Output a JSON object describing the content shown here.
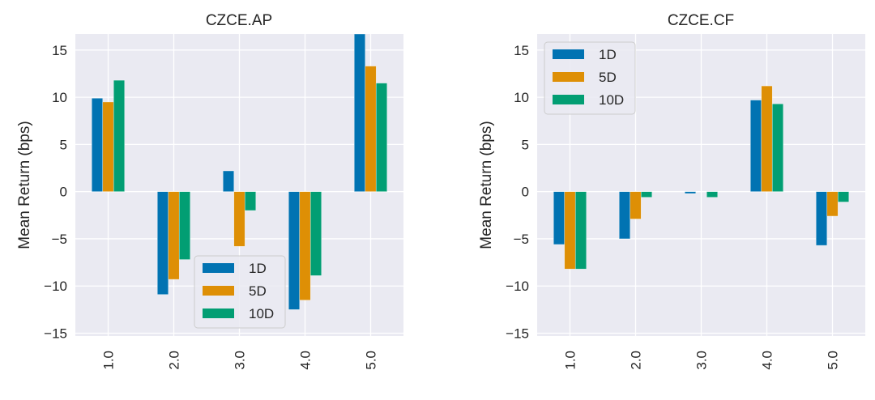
{
  "chart_data": [
    {
      "type": "bar",
      "title": "CZCE.AP",
      "xlabel": "",
      "ylabel": "Mean Return (bps)",
      "categories": [
        "1.0",
        "2.0",
        "3.0",
        "4.0",
        "5.0"
      ],
      "series": [
        {
          "name": "1D",
          "color": "#0173b2",
          "values": [
            9.9,
            -10.9,
            2.2,
            -12.5,
            16.8
          ]
        },
        {
          "name": "5D",
          "color": "#de8f05",
          "values": [
            9.5,
            -9.3,
            -5.8,
            -11.5,
            13.3
          ]
        },
        {
          "name": "10D",
          "color": "#029e73",
          "values": [
            11.8,
            -7.2,
            -2.0,
            -8.9,
            11.5
          ]
        }
      ],
      "ylim": [
        -15.3,
        16.7
      ],
      "yticks": [
        -15,
        -10,
        -5,
        0,
        5,
        10,
        15
      ],
      "ytick_labels": [
        "−15",
        "−10",
        "−5",
        "0",
        "5",
        "10",
        "15"
      ],
      "grid": true,
      "legend": {
        "position": "lower-center",
        "entries": [
          "1D",
          "5D",
          "10D"
        ]
      }
    },
    {
      "type": "bar",
      "title": "CZCE.CF",
      "xlabel": "",
      "ylabel": "Mean Return (bps)",
      "categories": [
        "1.0",
        "2.0",
        "3.0",
        "4.0",
        "5.0"
      ],
      "series": [
        {
          "name": "1D",
          "color": "#0173b2",
          "values": [
            -5.6,
            -5.0,
            -0.2,
            9.7,
            -5.7
          ]
        },
        {
          "name": "5D",
          "color": "#de8f05",
          "values": [
            -8.2,
            -2.9,
            0.0,
            11.2,
            -2.6
          ]
        },
        {
          "name": "10D",
          "color": "#029e73",
          "values": [
            -8.2,
            -0.6,
            -0.6,
            9.3,
            -1.1
          ]
        }
      ],
      "ylim": [
        -15.3,
        16.7
      ],
      "yticks": [
        -15,
        -10,
        -5,
        0,
        5,
        10,
        15
      ],
      "ytick_labels": [
        "−15",
        "−10",
        "−5",
        "0",
        "5",
        "10",
        "15"
      ],
      "grid": true,
      "legend": {
        "position": "upper-left",
        "entries": [
          "1D",
          "5D",
          "10D"
        ]
      }
    }
  ],
  "style": {
    "plot_background": "#eaeaf2",
    "grid_color": "#ffffff",
    "text_color": "#262626"
  }
}
